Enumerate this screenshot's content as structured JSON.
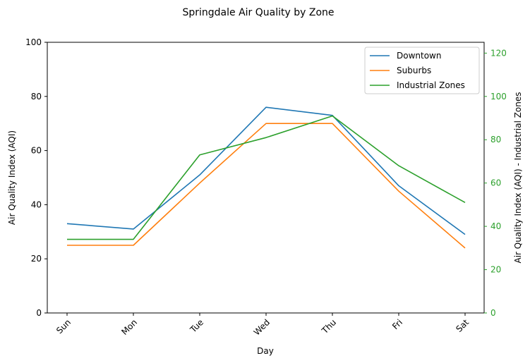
{
  "chart_data": {
    "type": "line",
    "title": "Springdale Air Quality by Zone",
    "xlabel": "Day",
    "ylabel": "Air Quality Index (AQI)",
    "ylabel_right": "Air Quality Index (AQI) - Industrial Zones",
    "categories": [
      "Sun",
      "Mon",
      "Tue",
      "Wed",
      "Thu",
      "Fri",
      "Sat"
    ],
    "ylim": [
      0,
      100
    ],
    "yticks": [
      0,
      20,
      40,
      60,
      80,
      100
    ],
    "ylim_right": [
      0,
      125
    ],
    "yticks_right": [
      0,
      20,
      40,
      60,
      80,
      100,
      120
    ],
    "legend_position": "top-right",
    "grid": false,
    "right_axis_color": "#2ca02c",
    "series": [
      {
        "name": "Downtown",
        "axis": "left",
        "color": "#1f77b4",
        "values": [
          33,
          31,
          51,
          76,
          73,
          47,
          29
        ]
      },
      {
        "name": "Suburbs",
        "axis": "left",
        "color": "#ff7f0e",
        "values": [
          25,
          25,
          48,
          70,
          70,
          45,
          24
        ]
      },
      {
        "name": "Industrial Zones",
        "axis": "right",
        "color": "#2ca02c",
        "values": [
          34,
          34,
          73,
          81,
          91,
          68,
          51
        ]
      }
    ]
  }
}
